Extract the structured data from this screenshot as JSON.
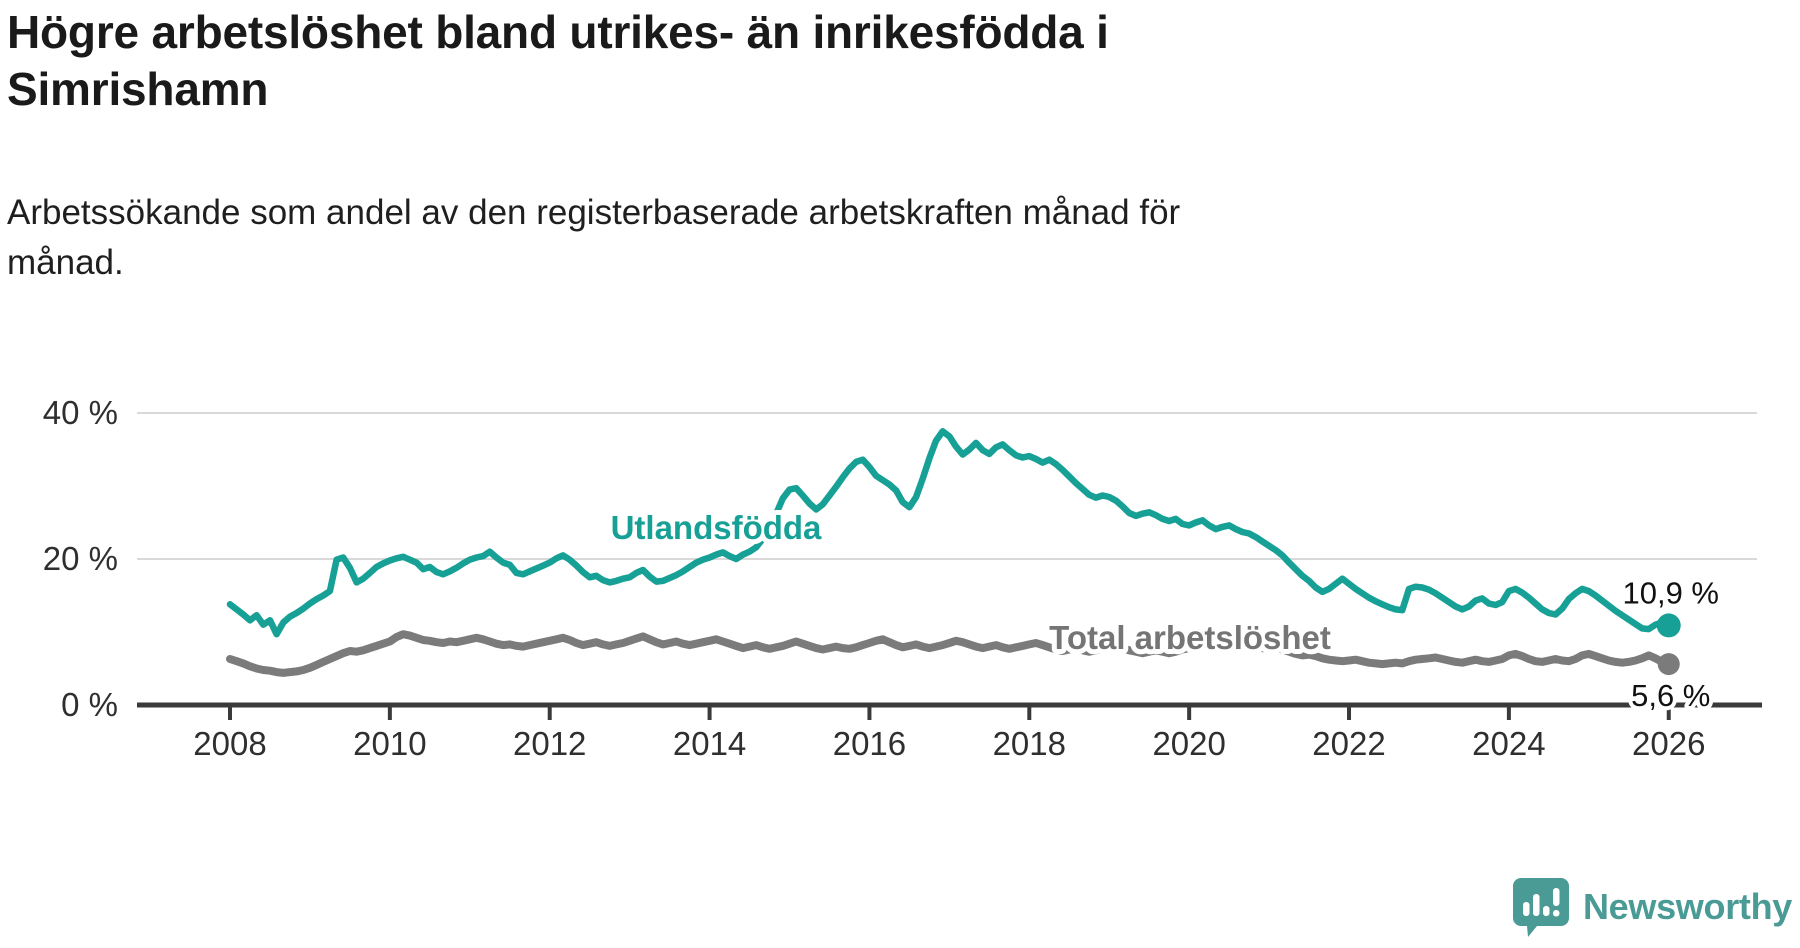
{
  "header": {
    "title": "Högre arbetslöshet bland utrikes- än inrikesfödda i Simrishamn",
    "subtitle": "Arbetssökande som andel av den registerbaserade arbetskraften månad för månad."
  },
  "footer": {
    "brand": "Newsworthy",
    "brand_color": "#4a9a96",
    "logo_icon": "speech-bubble-bar-chart-icon"
  },
  "chart_data": {
    "type": "line",
    "title": "Högre arbetslöshet bland utrikes- än inrikesfödda i Simrishamn",
    "subtitle": "Arbetssökande som andel av den registerbaserade arbetskraften månad för månad.",
    "x_unit": "month",
    "x_start_year": 2008,
    "x_end_label": "jan 2026",
    "points_per_year": 12,
    "x_tick_years": [
      2008,
      2010,
      2012,
      2014,
      2016,
      2018,
      2020,
      2022,
      2024,
      2026
    ],
    "x_tick_labels": [
      "2008",
      "2010",
      "2012",
      "2014",
      "2016",
      "2018",
      "2020",
      "2022",
      "2024",
      "2026"
    ],
    "y_ticks": [
      0,
      20,
      40
    ],
    "y_tick_labels": [
      "0 %",
      "20 %",
      "40 %"
    ],
    "ylim": [
      0,
      42
    ],
    "grid": "horizontal-only",
    "legend": "inline-series-labels",
    "series": [
      {
        "name": "Utlandsfödda",
        "color": "#17a095",
        "end_label": "10,9 %",
        "end_value": 10.9,
        "values": [
          13.8,
          13.1,
          12.4,
          11.6,
          12.3,
          11.0,
          11.6,
          9.7,
          11.3,
          12.1,
          12.6,
          13.2,
          13.9,
          14.5,
          15.0,
          15.6,
          19.9,
          20.2,
          18.8,
          16.8,
          17.3,
          18.1,
          18.9,
          19.4,
          19.8,
          20.1,
          20.3,
          19.9,
          19.5,
          18.6,
          18.9,
          18.2,
          17.9,
          18.3,
          18.8,
          19.4,
          19.9,
          20.2,
          20.4,
          21.0,
          20.2,
          19.5,
          19.2,
          18.1,
          17.9,
          18.3,
          18.7,
          19.1,
          19.5,
          20.1,
          20.5,
          19.9,
          19.1,
          18.2,
          17.5,
          17.7,
          17.1,
          16.8,
          17.0,
          17.3,
          17.5,
          18.1,
          18.5,
          17.6,
          16.9,
          17.0,
          17.4,
          17.8,
          18.3,
          18.9,
          19.5,
          19.9,
          20.2,
          20.6,
          20.9,
          20.4,
          20.0,
          20.6,
          21.0,
          21.6,
          22.8,
          24.4,
          26.2,
          28.3,
          29.5,
          29.7,
          28.7,
          27.6,
          26.8,
          27.5,
          28.7,
          29.9,
          31.2,
          32.4,
          33.3,
          33.6,
          32.6,
          31.4,
          30.8,
          30.2,
          29.4,
          27.8,
          27.1,
          28.5,
          31.0,
          33.8,
          36.2,
          37.5,
          36.8,
          35.4,
          34.3,
          35.0,
          35.9,
          34.9,
          34.4,
          35.3,
          35.7,
          34.9,
          34.2,
          33.9,
          34.1,
          33.7,
          33.2,
          33.6,
          33.0,
          32.2,
          31.3,
          30.4,
          29.6,
          28.8,
          28.4,
          28.7,
          28.5,
          28.0,
          27.2,
          26.3,
          25.9,
          26.2,
          26.4,
          26.0,
          25.5,
          25.2,
          25.5,
          24.8,
          24.6,
          25.0,
          25.3,
          24.6,
          24.1,
          24.4,
          24.6,
          24.1,
          23.7,
          23.5,
          23.0,
          22.4,
          21.8,
          21.2,
          20.5,
          19.5,
          18.6,
          17.7,
          17.0,
          16.1,
          15.5,
          15.9,
          16.6,
          17.3,
          16.6,
          15.9,
          15.3,
          14.7,
          14.2,
          13.8,
          13.4,
          13.1,
          13.0,
          15.9,
          16.2,
          16.1,
          15.8,
          15.3,
          14.7,
          14.1,
          13.5,
          13.1,
          13.5,
          14.3,
          14.6,
          13.9,
          13.7,
          14.1,
          15.6,
          15.9,
          15.4,
          14.7,
          13.9,
          13.1,
          12.6,
          12.4,
          13.2,
          14.5,
          15.3,
          15.9,
          15.6,
          15.0,
          14.3,
          13.6,
          12.9,
          12.3,
          11.7,
          11.1,
          10.5,
          10.4,
          11.0,
          11.3,
          10.9
        ]
      },
      {
        "name": "Total arbetslöshet",
        "color": "#7b7b7b",
        "end_label": "5,6 %",
        "end_value": 5.6,
        "values": [
          6.3,
          6.0,
          5.7,
          5.3,
          5.0,
          4.8,
          4.7,
          4.5,
          4.4,
          4.5,
          4.6,
          4.8,
          5.1,
          5.5,
          5.9,
          6.3,
          6.7,
          7.1,
          7.4,
          7.3,
          7.5,
          7.8,
          8.1,
          8.4,
          8.7,
          9.3,
          9.7,
          9.5,
          9.2,
          8.9,
          8.8,
          8.6,
          8.5,
          8.7,
          8.6,
          8.8,
          9.0,
          9.2,
          9.0,
          8.7,
          8.4,
          8.2,
          8.3,
          8.1,
          8.0,
          8.2,
          8.4,
          8.6,
          8.8,
          9.0,
          9.2,
          8.9,
          8.5,
          8.2,
          8.4,
          8.6,
          8.3,
          8.1,
          8.3,
          8.5,
          8.8,
          9.1,
          9.4,
          9.0,
          8.6,
          8.3,
          8.5,
          8.7,
          8.4,
          8.2,
          8.4,
          8.6,
          8.8,
          9.0,
          8.7,
          8.4,
          8.1,
          7.8,
          8.0,
          8.2,
          7.9,
          7.7,
          7.9,
          8.1,
          8.4,
          8.7,
          8.4,
          8.1,
          7.8,
          7.6,
          7.8,
          8.0,
          7.8,
          7.7,
          7.9,
          8.2,
          8.5,
          8.8,
          9.0,
          8.6,
          8.2,
          7.9,
          8.1,
          8.3,
          8.0,
          7.8,
          8.0,
          8.2,
          8.5,
          8.8,
          8.6,
          8.3,
          8.0,
          7.8,
          8.0,
          8.2,
          7.9,
          7.7,
          7.9,
          8.1,
          8.3,
          8.5,
          8.2,
          7.9,
          7.6,
          7.4,
          7.6,
          7.8,
          7.5,
          7.3,
          7.5,
          7.7,
          7.9,
          8.1,
          7.8,
          7.5,
          7.3,
          7.1,
          7.3,
          7.5,
          7.3,
          7.1,
          7.3,
          7.6,
          7.8,
          8.0,
          8.3,
          8.6,
          8.4,
          8.2,
          8.4,
          8.5,
          8.2,
          8.0,
          7.9,
          7.8,
          7.7,
          7.8,
          7.6,
          7.3,
          7.0,
          6.8,
          6.9,
          6.7,
          6.4,
          6.2,
          6.1,
          6.0,
          6.1,
          6.2,
          6.0,
          5.8,
          5.7,
          5.6,
          5.7,
          5.8,
          5.7,
          6.0,
          6.2,
          6.3,
          6.4,
          6.5,
          6.3,
          6.1,
          5.9,
          5.8,
          6.0,
          6.2,
          6.0,
          5.9,
          6.1,
          6.3,
          6.8,
          7.0,
          6.7,
          6.3,
          6.0,
          5.9,
          6.1,
          6.3,
          6.1,
          6.0,
          6.3,
          6.8,
          7.0,
          6.7,
          6.4,
          6.1,
          5.9,
          5.8,
          5.9,
          6.1,
          6.4,
          6.8,
          6.4,
          5.9,
          5.6
        ]
      }
    ]
  }
}
